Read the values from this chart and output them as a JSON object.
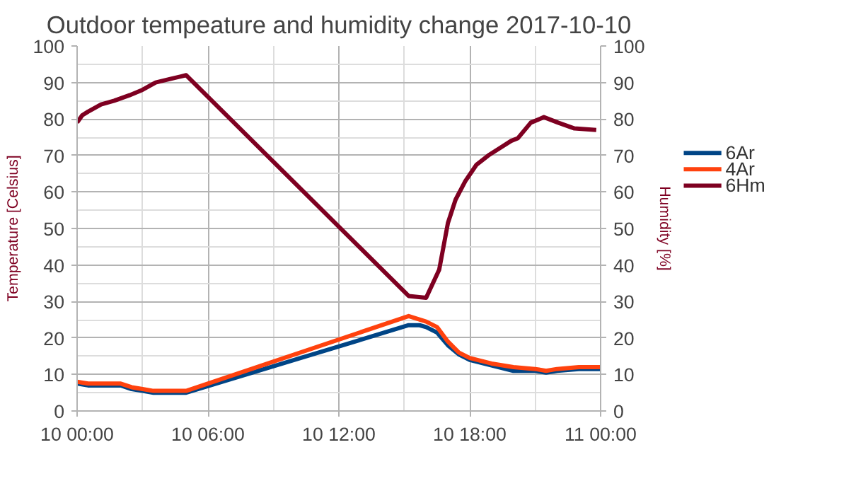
{
  "chart_data": {
    "type": "line",
    "title": "Outdoor tempeature and humidity change 2017-10-10",
    "ylabel": "Temperature [Celsius]",
    "y2label": "Humidity [%]",
    "xlim": [
      "2017-10-10T00:00",
      "2017-10-11T00:00"
    ],
    "xticks": [
      {
        "value": "2017-10-10T00:00",
        "label": "10 00:00"
      },
      {
        "value": "2017-10-10T06:00",
        "label": "10 06:00"
      },
      {
        "value": "2017-10-10T12:00",
        "label": "10 12:00"
      },
      {
        "value": "2017-10-10T18:00",
        "label": "10 18:00"
      },
      {
        "value": "2017-10-11T00:00",
        "label": "11 00:00"
      }
    ],
    "ylim": [
      0,
      100
    ],
    "yticks": [
      0,
      10,
      20,
      30,
      40,
      50,
      60,
      70,
      80,
      90,
      100
    ],
    "y2lim": [
      0,
      100
    ],
    "y2ticks": [
      0,
      10,
      20,
      30,
      40,
      50,
      60,
      70,
      80,
      90,
      100
    ],
    "grid": true,
    "legend": "right",
    "line_style": "solid",
    "series": [
      {
        "name": "6Ar",
        "color": "#004586",
        "x": [
          "2017-10-10T00:00",
          "2017-10-10T00:30",
          "2017-10-10T02:00",
          "2017-10-10T02:30",
          "2017-10-10T03:00",
          "2017-10-10T03:30",
          "2017-10-10T05:00",
          "2017-10-10T15:12",
          "2017-10-10T15:42",
          "2017-10-10T16:00",
          "2017-10-10T16:30",
          "2017-10-10T17:00",
          "2017-10-10T17:30",
          "2017-10-10T18:00",
          "2017-10-10T19:00",
          "2017-10-10T20:00",
          "2017-10-10T21:00",
          "2017-10-10T21:30",
          "2017-10-10T22:00",
          "2017-10-10T23:00",
          "2017-10-11T00:00"
        ],
        "values": [
          7.5,
          7,
          7,
          6,
          5.5,
          5,
          5,
          23.5,
          23.5,
          23,
          21.5,
          18,
          15.5,
          14,
          12.5,
          11,
          11,
          10.5,
          11,
          11.5,
          11.5
        ]
      },
      {
        "name": "4Ar",
        "color": "#ff420e",
        "x": [
          "2017-10-10T00:00",
          "2017-10-10T00:30",
          "2017-10-10T02:00",
          "2017-10-10T02:30",
          "2017-10-10T03:00",
          "2017-10-10T03:30",
          "2017-10-10T05:00",
          "2017-10-10T15:12",
          "2017-10-10T16:00",
          "2017-10-10T16:30",
          "2017-10-10T17:00",
          "2017-10-10T17:30",
          "2017-10-10T18:00",
          "2017-10-10T19:00",
          "2017-10-10T20:00",
          "2017-10-10T21:00",
          "2017-10-10T21:30",
          "2017-10-10T22:00",
          "2017-10-10T23:00",
          "2017-10-11T00:00"
        ],
        "values": [
          8,
          7.5,
          7.5,
          6.5,
          6,
          5.5,
          5.5,
          26,
          24.5,
          23,
          19,
          16,
          14.5,
          13,
          12,
          11.5,
          11,
          11.5,
          12,
          12
        ]
      },
      {
        "name": "6Hm",
        "color": "#7e0021",
        "axis": "y2",
        "x": [
          "2017-10-10T00:00",
          "2017-10-10T00:14",
          "2017-10-10T00:30",
          "2017-10-10T01:06",
          "2017-10-10T01:42",
          "2017-10-10T02:24",
          "2017-10-10T03:00",
          "2017-10-10T03:36",
          "2017-10-10T04:18",
          "2017-10-10T05:00",
          "2017-10-10T15:12",
          "2017-10-10T16:00",
          "2017-10-10T16:36",
          "2017-10-10T17:00",
          "2017-10-10T17:21",
          "2017-10-10T17:48",
          "2017-10-10T18:18",
          "2017-10-10T18:51",
          "2017-10-10T19:30",
          "2017-10-10T19:54",
          "2017-10-10T20:12",
          "2017-10-10T20:48",
          "2017-10-10T21:24",
          "2017-10-10T22:03",
          "2017-10-10T22:48",
          "2017-10-10T23:48"
        ],
        "values": [
          79,
          81,
          82,
          84,
          85,
          86.5,
          88,
          90,
          91,
          92,
          31.5,
          31,
          38.7,
          51.5,
          57.9,
          63,
          67.4,
          70,
          72.5,
          74,
          74.7,
          79,
          80.5,
          79,
          77.4,
          77
        ]
      }
    ]
  }
}
